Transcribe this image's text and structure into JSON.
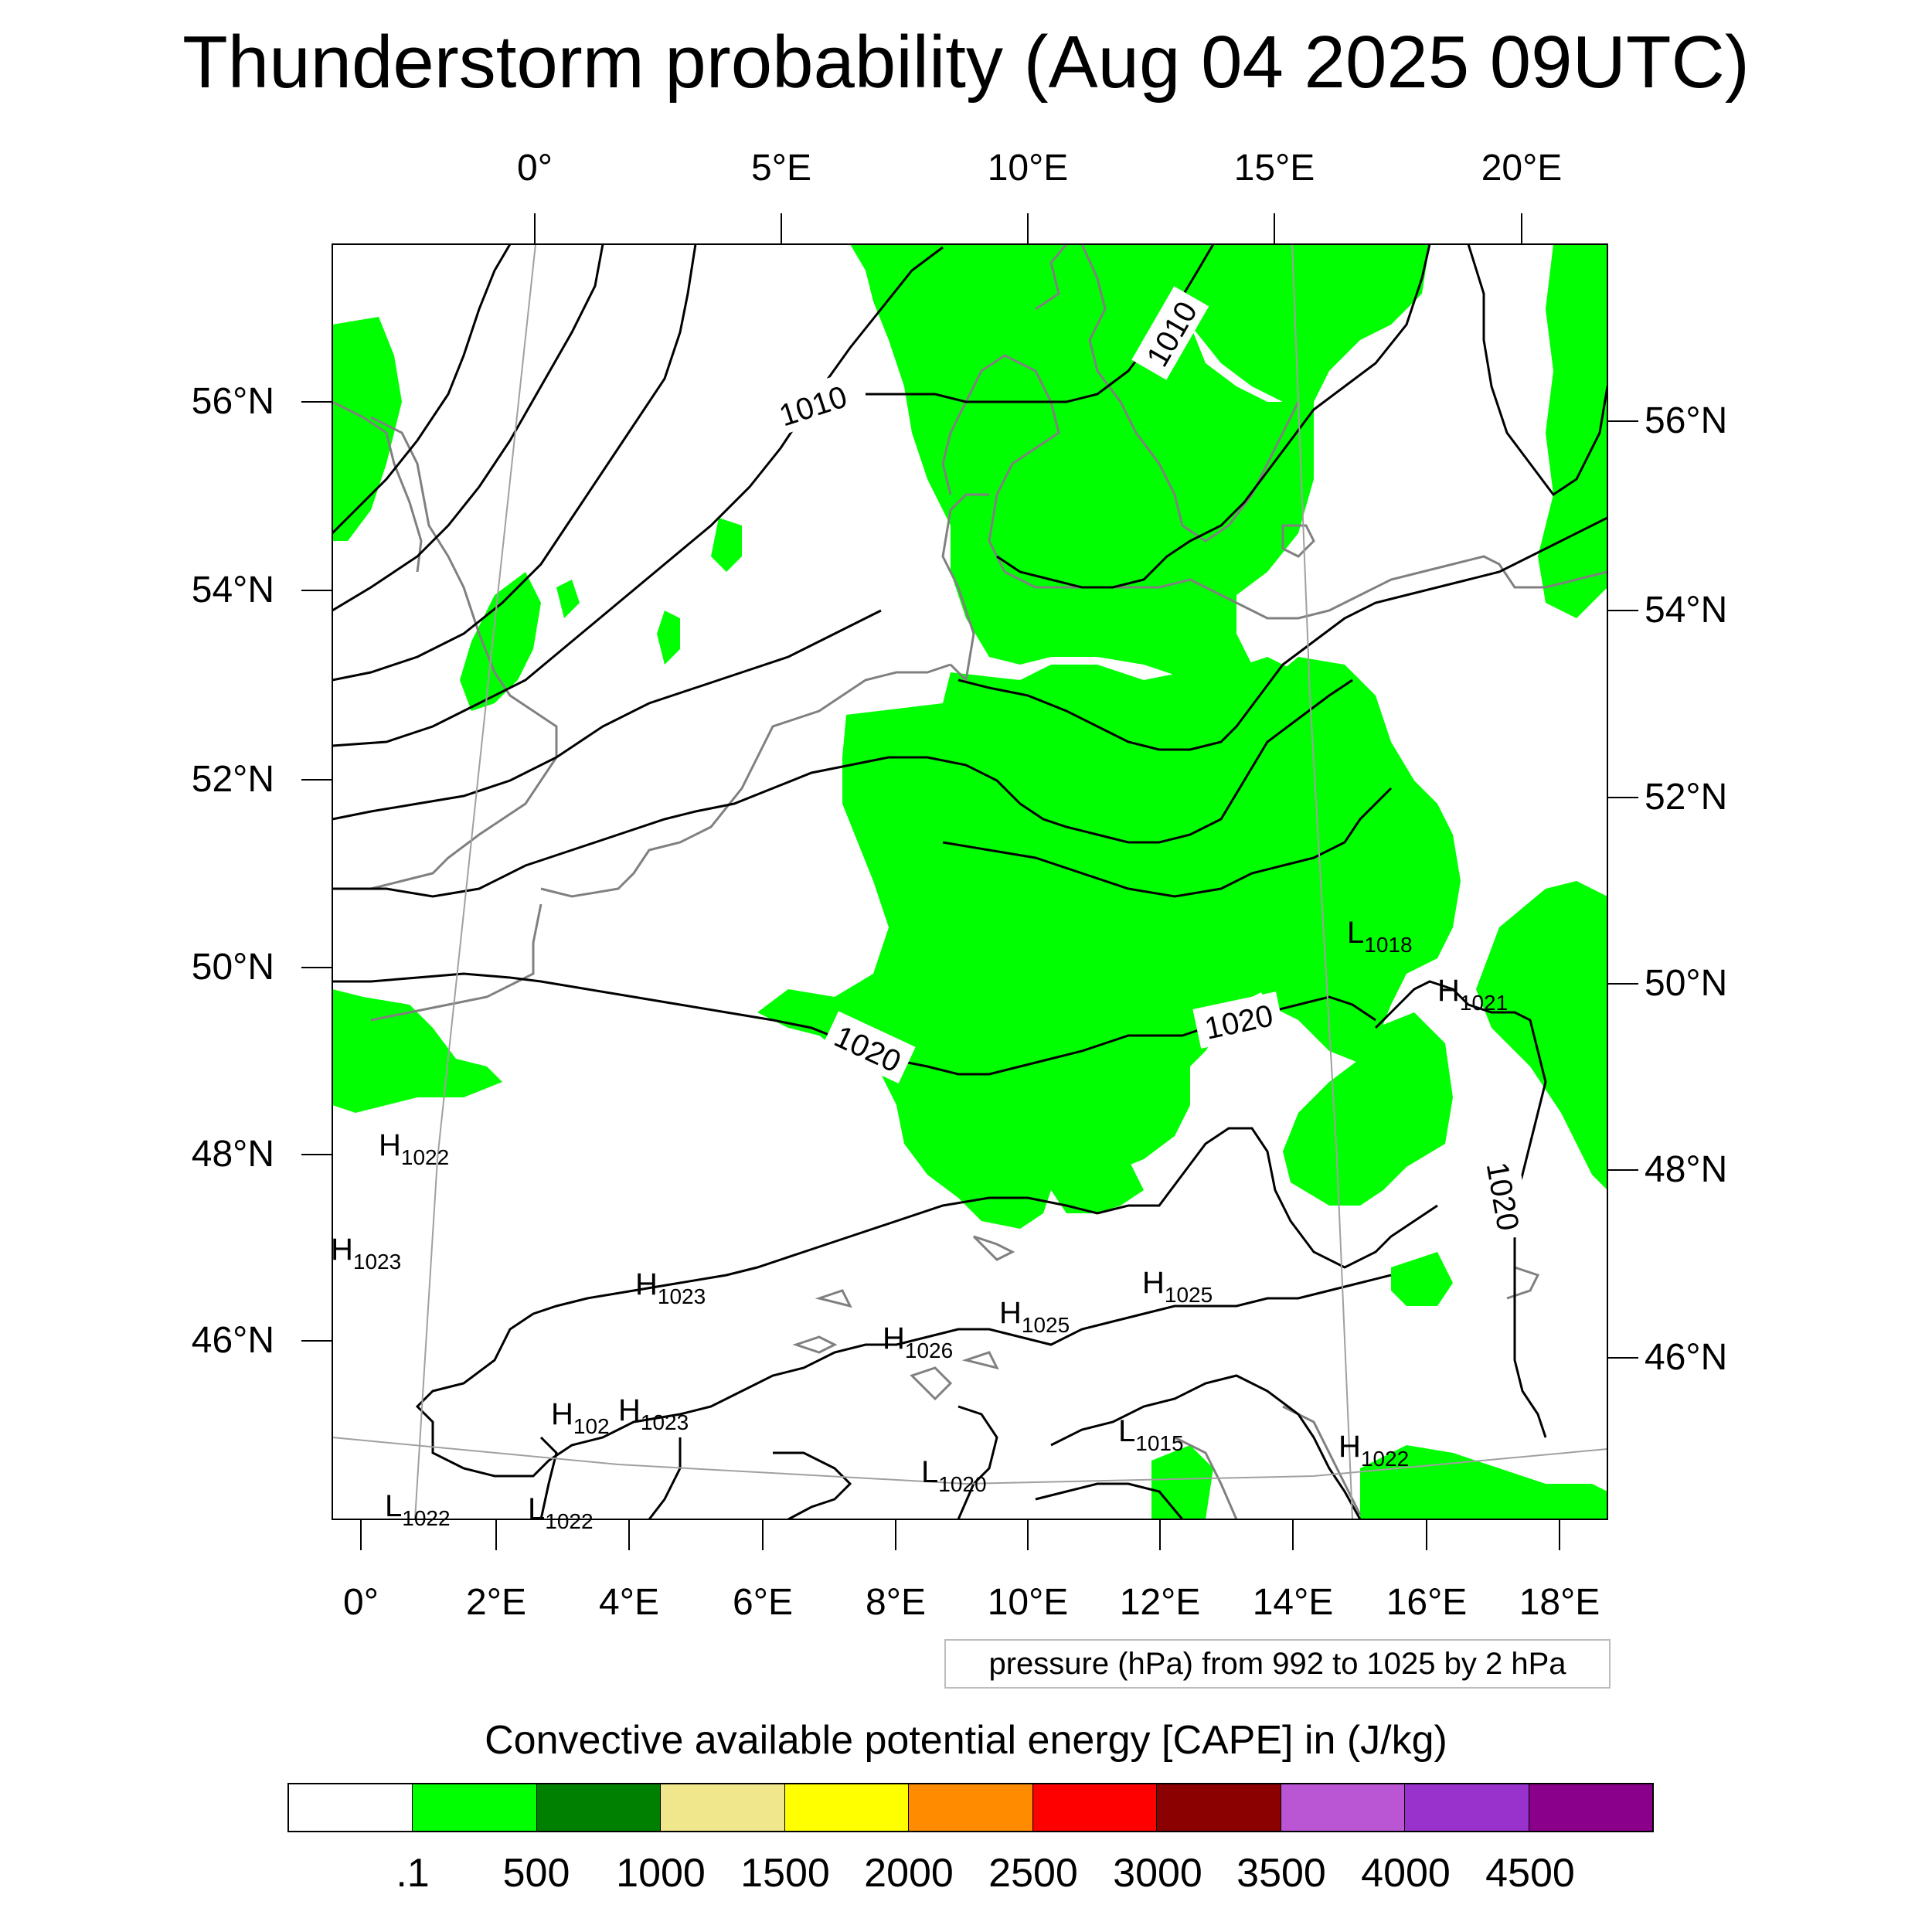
{
  "title": "Thunderstorm probability (Aug 04 2025 09UTC)",
  "top_labels": [
    "0°",
    "5°E",
    "10°E",
    "15°E",
    "20°E"
  ],
  "bottom_labels": [
    "0°",
    "2°E",
    "4°E",
    "6°E",
    "8°E",
    "10°E",
    "12°E",
    "14°E",
    "16°E",
    "18°E"
  ],
  "left_labels": [
    "56°N",
    "54°N",
    "52°N",
    "50°N",
    "48°N",
    "46°N"
  ],
  "right_labels": [
    "56°N",
    "54°N",
    "52°N",
    "50°N",
    "48°N",
    "46°N"
  ],
  "contour_labels": [
    "1010",
    "1010",
    "1020",
    "1020",
    "1020"
  ],
  "pressure_centers": [
    {
      "letter": "H",
      "value": "1022"
    },
    {
      "letter": "H",
      "value": "1023"
    },
    {
      "letter": "H",
      "value": "1023"
    },
    {
      "letter": "H",
      "value": "1026"
    },
    {
      "letter": "H",
      "value": "1025"
    },
    {
      "letter": "H",
      "value": "1025"
    },
    {
      "letter": "H",
      "value": "102"
    },
    {
      "letter": "H",
      "value": "1023"
    },
    {
      "letter": "L",
      "value": "1020"
    },
    {
      "letter": "L",
      "value": "1018"
    },
    {
      "letter": "H",
      "value": "1021"
    },
    {
      "letter": "L",
      "value": "1015"
    },
    {
      "letter": "H",
      "value": "1022"
    },
    {
      "letter": "L",
      "value": "1022"
    },
    {
      "letter": "L",
      "value": "1022"
    }
  ],
  "contour_info": "pressure (hPa) from 992 to 1025 by 2 hPa",
  "colorbar": {
    "title": "Convective available potential energy [CAPE] in (J/kg)",
    "colors": [
      "#ffffff",
      "#00ff00",
      "#008000",
      "#f0e68c",
      "#ffff00",
      "#ff8c00",
      "#ff0000",
      "#8b0000",
      "#ba55d3",
      "#9932cc",
      "#8b008b"
    ],
    "ticks": [
      ".1",
      "500",
      "1000",
      "1500",
      "2000",
      "2500",
      "3000",
      "3500",
      "4000",
      "4500"
    ]
  },
  "colors": {
    "cape_fill": "#00ff00",
    "coastline": "#808080",
    "isobar": "#000000"
  }
}
